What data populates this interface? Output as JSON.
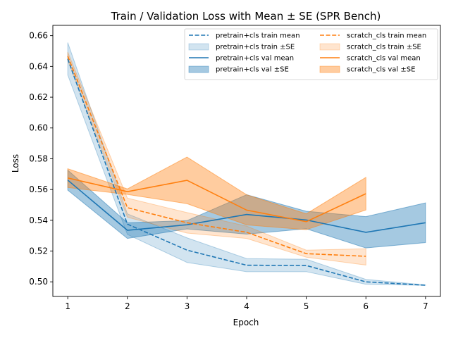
{
  "chart_data": {
    "type": "line",
    "title": "Train / Validation Loss with Mean ± SE (SPR Bench)",
    "xlabel": "Epoch",
    "ylabel": "Loss",
    "xlim": [
      0.75,
      7.25
    ],
    "ylim": [
      0.4905,
      0.6667
    ],
    "xticks": [
      1,
      2,
      3,
      4,
      5,
      6,
      7
    ],
    "yticks": [
      0.5,
      0.52,
      0.54,
      0.56,
      0.58,
      0.6,
      0.62,
      0.64,
      0.66
    ],
    "ytick_labels": [
      "0.50",
      "0.52",
      "0.54",
      "0.56",
      "0.58",
      "0.60",
      "0.62",
      "0.64",
      "0.66"
    ],
    "grid": false,
    "legend_position": "top-right",
    "legend_columns": 2,
    "colors": {
      "pretrain": "#1f77b4",
      "scratch": "#ff7f0e"
    },
    "series": [
      {
        "name": "pretrain+cls train mean",
        "band_name": "pretrain+cls train ±SE",
        "color": "#1f77b4",
        "linestyle": "dashed",
        "band_alpha": 0.2,
        "x": [
          1,
          2,
          3,
          4,
          5,
          6,
          7
        ],
        "mean": [
          0.6449,
          0.5375,
          0.5206,
          0.5108,
          0.5106,
          0.5,
          0.4978
        ],
        "upper": [
          0.6555,
          0.5442,
          0.5286,
          0.5151,
          0.5147,
          0.5016,
          0.498
        ],
        "lower": [
          0.6344,
          0.5308,
          0.5126,
          0.5066,
          0.5066,
          0.4984,
          0.4977
        ]
      },
      {
        "name": "pretrain+cls val mean",
        "band_name": "pretrain+cls val ±SE",
        "color": "#1f77b4",
        "linestyle": "solid",
        "band_alpha": 0.4,
        "x": [
          1,
          2,
          3,
          4,
          5,
          6,
          7
        ],
        "mean": [
          0.5661,
          0.5335,
          0.5371,
          0.5438,
          0.5402,
          0.5322,
          0.5384
        ],
        "upper": [
          0.5726,
          0.5384,
          0.5398,
          0.5566,
          0.5459,
          0.5424,
          0.5513
        ],
        "lower": [
          0.5596,
          0.5282,
          0.5344,
          0.531,
          0.5345,
          0.522,
          0.5255
        ]
      },
      {
        "name": "scratch_cls train mean",
        "band_name": "scratch_cls train ±SE",
        "color": "#ff7f0e",
        "linestyle": "dashed",
        "band_alpha": 0.2,
        "x": [
          1,
          2,
          3,
          4,
          5,
          6
        ],
        "mean": [
          0.6467,
          0.5482,
          0.5384,
          0.5322,
          0.5183,
          0.5166
        ],
        "upper": [
          0.6493,
          0.5544,
          0.545,
          0.5362,
          0.5206,
          0.5215
        ],
        "lower": [
          0.644,
          0.542,
          0.5317,
          0.5282,
          0.516,
          0.5109
        ]
      },
      {
        "name": "scratch_cls val mean",
        "band_name": "scratch_cls val ±SE",
        "color": "#ff7f0e",
        "linestyle": "solid",
        "band_alpha": 0.4,
        "x": [
          1,
          2,
          3,
          4,
          5,
          6
        ],
        "mean": [
          0.5675,
          0.5586,
          0.566,
          0.5466,
          0.5391,
          0.5573
        ],
        "upper": [
          0.5735,
          0.5604,
          0.5811,
          0.5566,
          0.5442,
          0.5679
        ],
        "lower": [
          0.5613,
          0.5568,
          0.5508,
          0.537,
          0.5339,
          0.5467
        ]
      }
    ]
  }
}
